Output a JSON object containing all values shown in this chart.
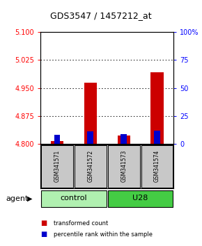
{
  "title": "GDS3547 / 1457212_at",
  "samples": [
    "GSM341571",
    "GSM341572",
    "GSM341573",
    "GSM341574"
  ],
  "red_values": [
    4.807,
    4.965,
    4.822,
    4.992
  ],
  "blue_values": [
    4.824,
    4.833,
    4.826,
    4.836
  ],
  "ylim_left": [
    4.8,
    5.1
  ],
  "ylim_right": [
    0,
    100
  ],
  "yticks_left": [
    4.8,
    4.875,
    4.95,
    5.025,
    5.1
  ],
  "yticks_right": [
    0,
    25,
    50,
    75,
    100
  ],
  "bar_bottom": 4.8,
  "red_color": "#cc0000",
  "blue_color": "#0000cc",
  "legend_red": "transformed count",
  "legend_blue": "percentile rank within the sample",
  "agent_label": "agent",
  "group_label_control": "control",
  "group_label_U28": "U28",
  "control_color": "#b0f0b0",
  "u28_color": "#44cc44",
  "sample_bg": "#c8c8c8"
}
